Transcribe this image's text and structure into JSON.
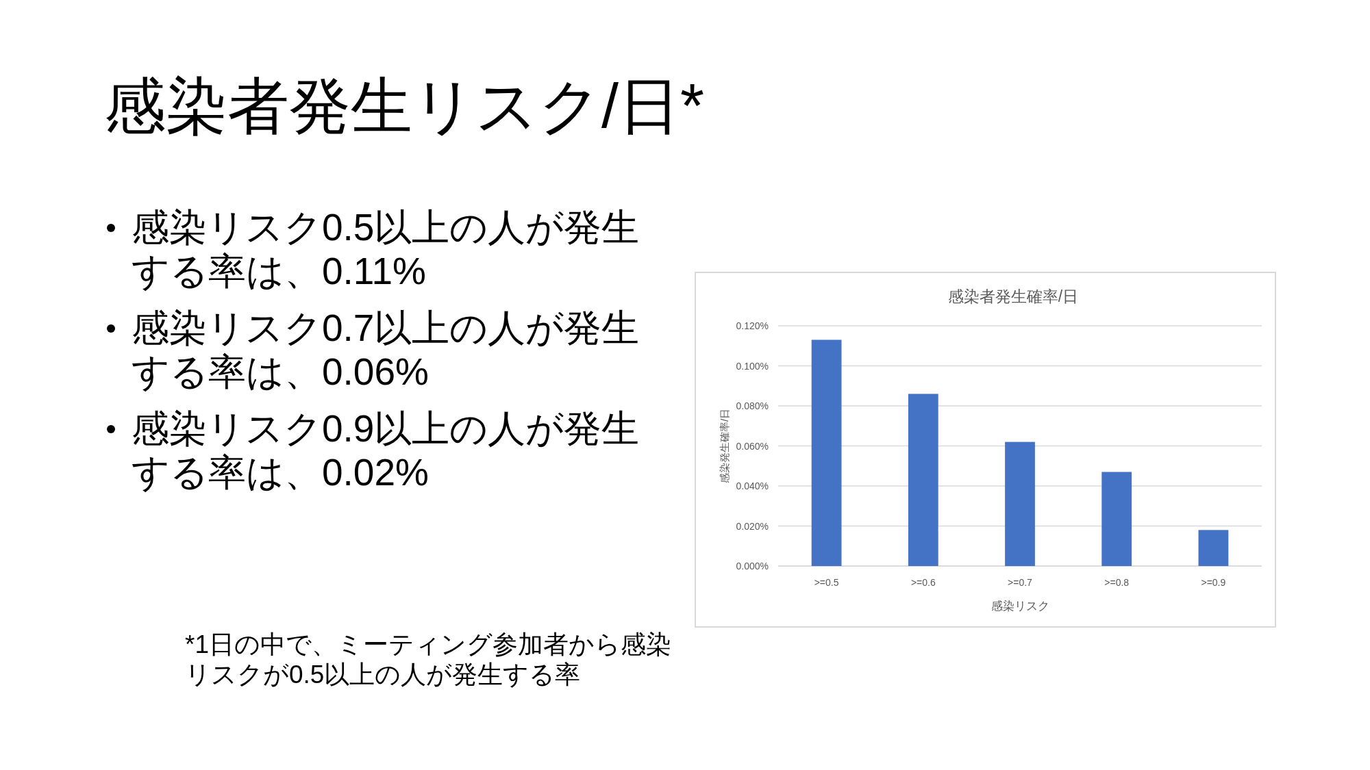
{
  "chart_data": {
    "type": "bar",
    "title": "感染者発生確率/日",
    "xlabel": "感染リスク",
    "ylabel": "感染発生確率/日",
    "categories": [
      ">=0.5",
      ">=0.6",
      ">=0.7",
      ">=0.8",
      ">=0.9"
    ],
    "values": [
      0.113,
      0.086,
      0.062,
      0.047,
      0.018
    ],
    "color": "#4472c4",
    "ylim": [
      0,
      0.12
    ],
    "yticks": [
      {
        "value": 0,
        "label": "0.000%"
      },
      {
        "value": 0.02,
        "label": "0.020%"
      },
      {
        "value": 0.04,
        "label": "0.040%"
      },
      {
        "value": 0.06,
        "label": "0.060%"
      },
      {
        "value": 0.08,
        "label": "0.080%"
      },
      {
        "value": 0.1,
        "label": "0.100%"
      },
      {
        "value": 0.12,
        "label": "0.120%"
      }
    ],
    "grid": "y",
    "annotations": [
      "感染者発生リスク/日*",
      "感染リスク0.5以上の人が発生する率は、0.11%",
      "感染リスク0.7以上の人が発生する率は、0.06%",
      "感染リスク0.9以上の人が発生する率は、0.02%",
      "*1日の中で、ミーティング参加者から感染リスクが0.5以上の人が発生する率"
    ]
  }
}
